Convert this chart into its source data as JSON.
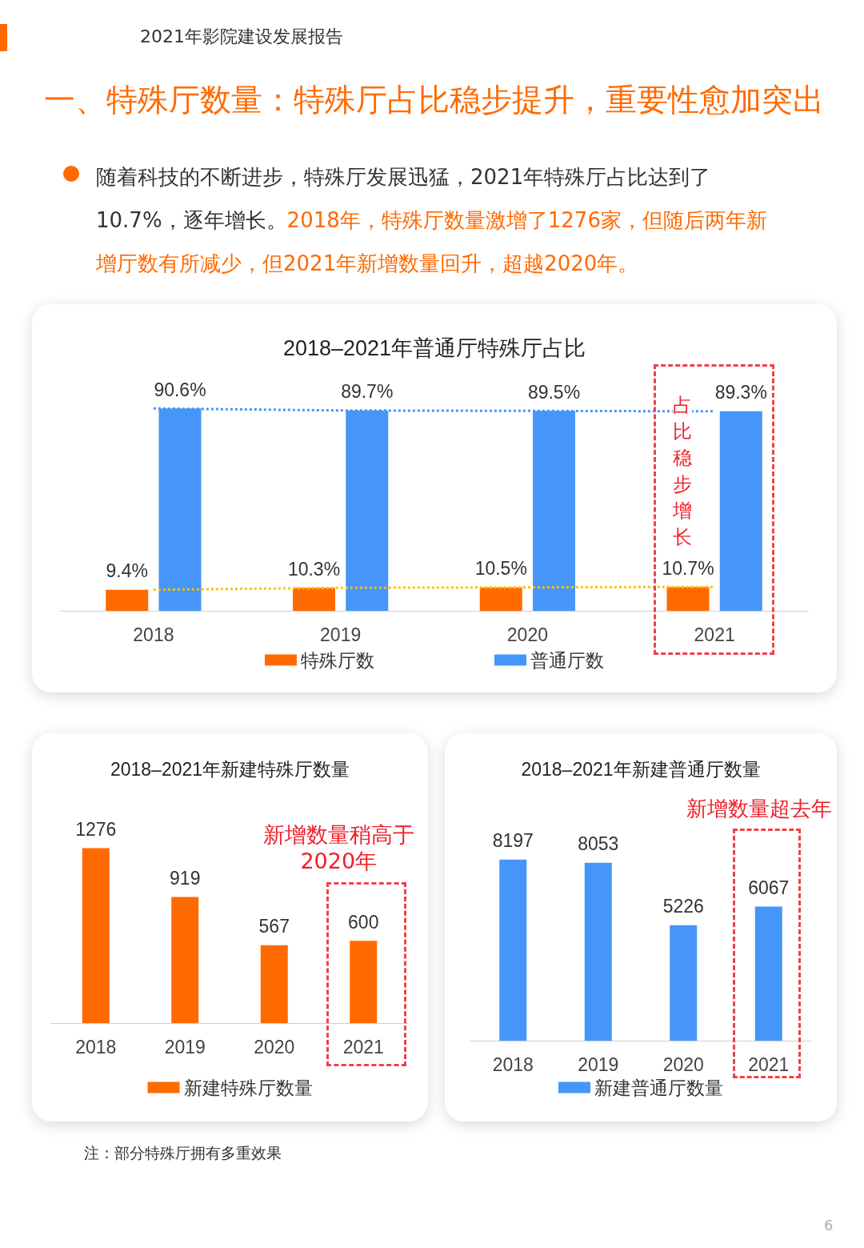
{
  "chart_data": [
    {
      "type": "bar",
      "title": "2018–2021年普通厅特殊厅占比",
      "categories": [
        "2018",
        "2019",
        "2020",
        "2021"
      ],
      "legend": "bottom",
      "series": [
        {
          "name": "特殊厅数",
          "color": "#ff6a00",
          "values": [
            9.4,
            10.3,
            10.5,
            10.7
          ],
          "value_labels": [
            "9.4%",
            "10.3%",
            "10.5%",
            "10.7%"
          ]
        },
        {
          "name": "普通厅数",
          "color": "#4596f8",
          "values": [
            90.6,
            89.7,
            89.5,
            89.3
          ],
          "value_labels": [
            "90.6%",
            "89.7%",
            "89.5%",
            "89.3%"
          ]
        },
        {
          "type": "line",
          "color": "#4596f8",
          "line_style": "dotted",
          "marker": "none",
          "values": [
            90.6,
            89.7,
            89.5,
            89.3
          ]
        },
        {
          "type": "line",
          "color": "#ffc000",
          "line_style": "dotted",
          "marker": "none",
          "values": [
            9.4,
            10.3,
            10.5,
            10.7
          ]
        }
      ],
      "annotations": [
        "2021年影院建设发展报告",
        "一、特殊厅数量：特殊厅占比稳步提升，重要性愈加突出",
        "随着科技的不断进步，特殊厅发展迅猛，2021年特殊厅占比达到了10.7%，逐年增长。",
        "2018年，特殊厅数量激增了1276家，但随后两年新增厅数有所减少，但2021年新增数量回升，超越2020年。",
        "占比稳步增长"
      ]
    },
    {
      "type": "bar",
      "title": "2018–2021年新建特殊厅数量",
      "categories": [
        "2018",
        "2019",
        "2020",
        "2021"
      ],
      "legend": "bottom",
      "data_labels": true,
      "series": [
        {
          "name": "新建特殊厅数量",
          "color": "#ff6a00",
          "values": [
            1276,
            919,
            567,
            600
          ]
        }
      ],
      "annotations": [
        "新增数量稍高于2020年",
        "注：部分特殊厅拥有多重效果"
      ]
    },
    {
      "type": "bar",
      "title": "2018–2021年新建普通厅数量",
      "categories": [
        "2018",
        "2019",
        "2020",
        "2021"
      ],
      "legend": "bottom",
      "data_labels": true,
      "series": [
        {
          "name": "新建普通厅数量",
          "color": "#4596f8",
          "values": [
            8197,
            8053,
            5226,
            6067
          ]
        }
      ],
      "annotations": [
        "新增数量超去年",
        "6"
      ]
    }
  ]
}
